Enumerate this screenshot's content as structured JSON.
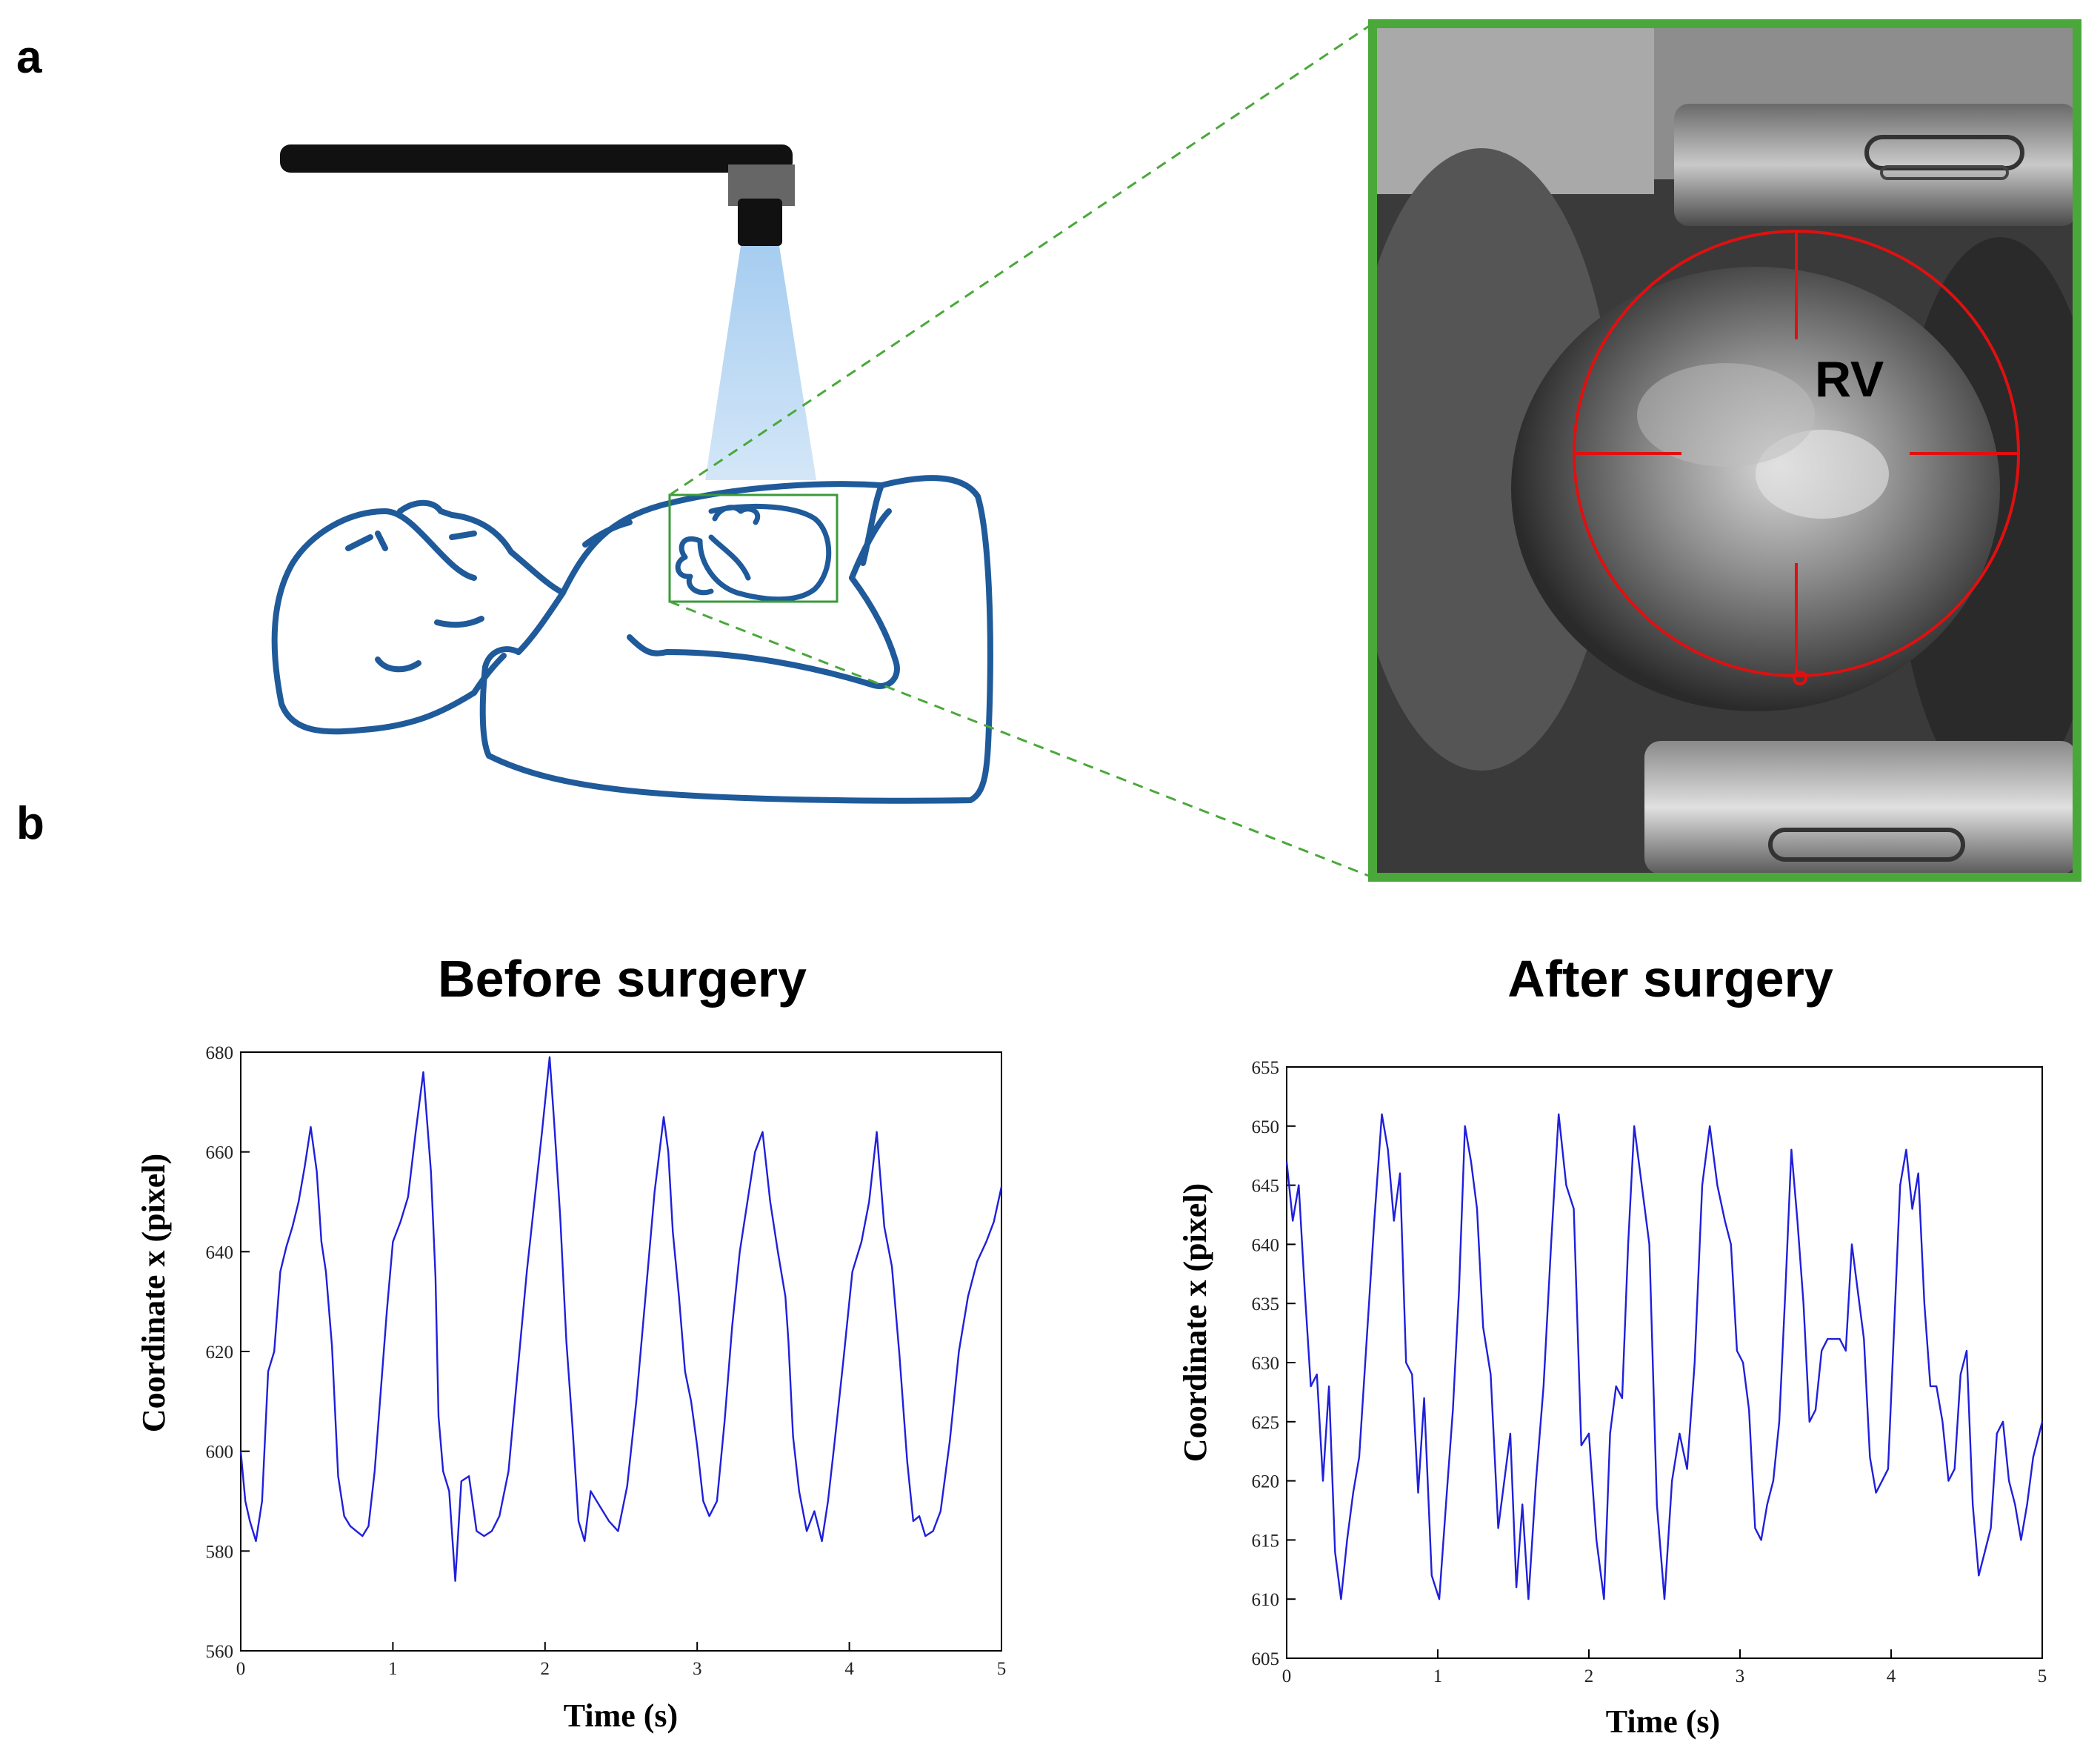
{
  "panels": {
    "a_label": "a",
    "b_label": "b"
  },
  "illustration": {
    "outline_color": "#1f5a9a",
    "roi_color": "#3a9a3a",
    "beam_color": "#7fb6e6",
    "camera_color": "#111111",
    "icons": [
      "camera-arm-icon",
      "camera-icon",
      "light-beam-icon",
      "patient-outline-icon",
      "heart-icon"
    ]
  },
  "photo": {
    "frame_color": "#4aa83a",
    "crosshair_color": "#e01010",
    "label": "RV"
  },
  "chart_data": [
    {
      "type": "line",
      "title": "Before surgery",
      "xlabel": "Time (s)",
      "ylabel": "Coordinate x (pixel)",
      "xlim": [
        0,
        5
      ],
      "ylim": [
        560,
        680
      ],
      "xticks": [
        0,
        1,
        2,
        3,
        4,
        5
      ],
      "yticks": [
        560,
        580,
        600,
        620,
        640,
        660,
        680
      ],
      "grid": false,
      "line_color": "#1f1fdc",
      "series": [
        {
          "x": [
            0,
            0.03,
            0.06,
            0.1,
            0.14,
            0.18,
            0.22,
            0.26,
            0.3,
            0.34,
            0.38,
            0.42,
            0.46,
            0.5,
            0.53,
            0.56,
            0.6,
            0.64,
            0.68,
            0.72,
            0.76,
            0.8,
            0.84,
            0.88,
            0.92,
            0.96,
            1.0,
            1.05,
            1.1,
            1.15,
            1.2,
            1.25,
            1.28,
            1.3,
            1.33,
            1.37,
            1.41,
            1.45,
            1.5,
            1.55,
            1.6,
            1.65,
            1.7,
            1.76,
            1.82,
            1.88,
            1.93,
            1.98,
            2.03,
            2.06,
            2.1,
            2.14,
            2.18,
            2.22,
            2.26,
            2.3,
            2.36,
            2.42,
            2.48,
            2.54,
            2.6,
            2.66,
            2.72,
            2.78,
            2.81,
            2.84,
            2.88,
            2.92,
            2.96,
            3.0,
            3.04,
            3.08,
            3.13,
            3.18,
            3.23,
            3.28,
            3.33,
            3.38,
            3.43,
            3.48,
            3.53,
            3.58,
            3.6,
            3.63,
            3.67,
            3.72,
            3.77,
            3.82,
            3.86,
            3.9,
            3.96,
            4.02,
            4.08,
            4.13,
            4.18,
            4.23,
            4.28,
            4.33,
            4.38,
            4.42,
            4.46,
            4.5,
            4.55,
            4.6,
            4.66,
            4.72,
            4.78,
            4.84,
            4.9,
            4.95,
            5.0
          ],
          "y": [
            600,
            590,
            586,
            582,
            590,
            616,
            620,
            636,
            641,
            645,
            650,
            657,
            665,
            656,
            642,
            636,
            621,
            595,
            587,
            585,
            584,
            583,
            585,
            596,
            612,
            628,
            642,
            646,
            651,
            664,
            676,
            656,
            635,
            607,
            596,
            592,
            574,
            594,
            595,
            584,
            583,
            584,
            587,
            596,
            616,
            636,
            650,
            664,
            679,
            666,
            647,
            622,
            605,
            586,
            582,
            592,
            589,
            586,
            584,
            593,
            610,
            631,
            652,
            667,
            660,
            644,
            631,
            616,
            610,
            601,
            590,
            587,
            590,
            606,
            625,
            640,
            650,
            660,
            664,
            650,
            640,
            631,
            622,
            603,
            592,
            584,
            588,
            582,
            590,
            601,
            618,
            636,
            642,
            650,
            664,
            645,
            637,
            619,
            598,
            586,
            587,
            583,
            584,
            588,
            602,
            620,
            631,
            638,
            642,
            646,
            653
          ]
        }
      ]
    },
    {
      "type": "line",
      "title": "After surgery",
      "xlabel": "Time (s)",
      "ylabel": "Coordinate x (pixel)",
      "xlim": [
        0,
        5
      ],
      "ylim": [
        605,
        655
      ],
      "xticks": [
        0,
        1,
        2,
        3,
        4,
        5
      ],
      "yticks": [
        605,
        610,
        615,
        620,
        625,
        630,
        635,
        640,
        645,
        650,
        655
      ],
      "grid": false,
      "line_color": "#1f1fdc",
      "series": [
        {
          "x": [
            0,
            0.04,
            0.08,
            0.12,
            0.16,
            0.2,
            0.24,
            0.28,
            0.32,
            0.36,
            0.4,
            0.44,
            0.48,
            0.53,
            0.58,
            0.63,
            0.67,
            0.71,
            0.75,
            0.79,
            0.83,
            0.87,
            0.91,
            0.96,
            1.01,
            1.06,
            1.1,
            1.14,
            1.18,
            1.22,
            1.26,
            1.3,
            1.35,
            1.4,
            1.44,
            1.48,
            1.52,
            1.56,
            1.6,
            1.65,
            1.7,
            1.75,
            1.8,
            1.85,
            1.9,
            1.95,
            2.0,
            2.05,
            2.1,
            2.14,
            2.18,
            2.22,
            2.26,
            2.3,
            2.35,
            2.4,
            2.45,
            2.5,
            2.55,
            2.6,
            2.65,
            2.7,
            2.75,
            2.8,
            2.85,
            2.9,
            2.94,
            2.98,
            3.02,
            3.06,
            3.1,
            3.14,
            3.18,
            3.22,
            3.26,
            3.3,
            3.34,
            3.38,
            3.42,
            3.46,
            3.5,
            3.54,
            3.58,
            3.62,
            3.66,
            3.7,
            3.74,
            3.78,
            3.82,
            3.86,
            3.9,
            3.94,
            3.98,
            4.02,
            4.06,
            4.1,
            4.14,
            4.18,
            4.22,
            4.26,
            4.3,
            4.34,
            4.38,
            4.42,
            4.46,
            4.5,
            4.54,
            4.58,
            4.62,
            4.66,
            4.7,
            4.74,
            4.78,
            4.82,
            4.86,
            4.9,
            4.94,
            4.98,
            5.0
          ],
          "y": [
            647,
            642,
            645,
            636,
            628,
            629,
            620,
            628,
            614,
            610,
            615,
            619,
            622,
            632,
            642,
            651,
            648,
            642,
            646,
            630,
            629,
            619,
            627,
            612,
            610,
            619,
            626,
            636,
            650,
            647,
            643,
            633,
            629,
            616,
            620,
            624,
            611,
            618,
            610,
            620,
            628,
            640,
            651,
            645,
            643,
            623,
            624,
            615,
            610,
            624,
            628,
            627,
            640,
            650,
            645,
            640,
            618,
            610,
            620,
            624,
            621,
            630,
            645,
            650,
            645,
            642,
            640,
            631,
            630,
            626,
            616,
            615,
            618,
            620,
            625,
            636,
            648,
            642,
            635,
            625,
            626,
            631,
            632,
            632,
            632,
            631,
            640,
            636,
            632,
            622,
            619,
            620,
            621,
            633,
            645,
            648,
            643,
            646,
            635,
            628,
            628,
            625,
            620,
            621,
            629,
            631,
            618,
            612,
            614,
            616,
            624,
            625,
            620,
            618,
            615,
            618,
            622,
            624,
            625
          ]
        }
      ]
    }
  ]
}
